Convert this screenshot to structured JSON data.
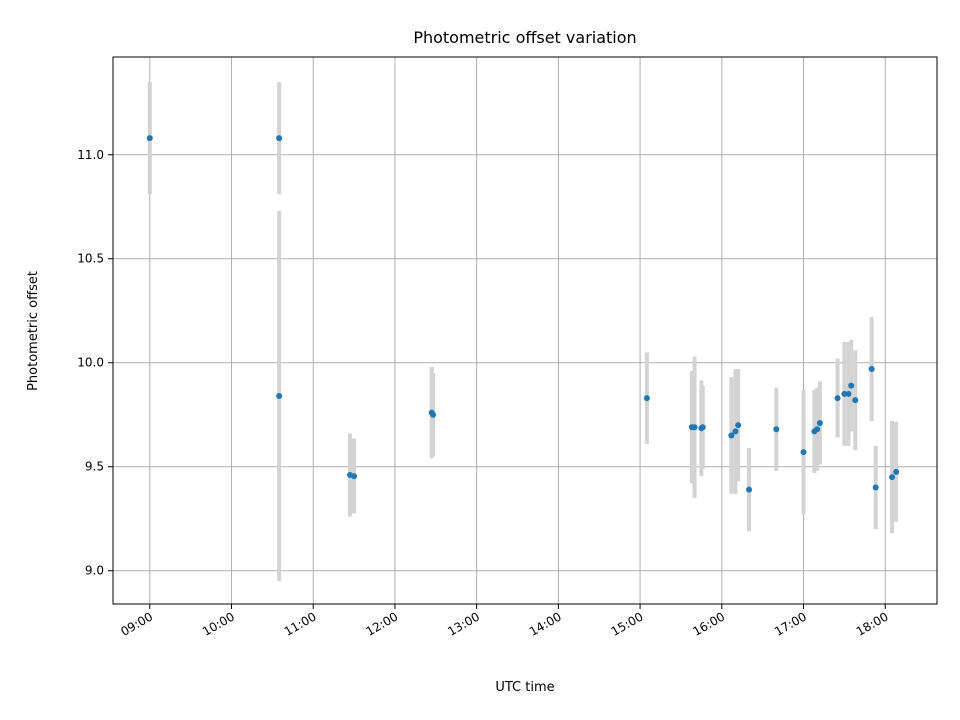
{
  "chart_data": {
    "type": "scatter",
    "title": "Photometric offset variation",
    "xlabel": "UTC time",
    "ylabel": "Photometric offset",
    "xlim": [
      "08:33",
      "18:38"
    ],
    "ylim": [
      8.84,
      11.47
    ],
    "xticks": [
      "09:00",
      "10:00",
      "11:00",
      "12:00",
      "13:00",
      "14:00",
      "15:00",
      "16:00",
      "17:00",
      "18:00"
    ],
    "yticks": [
      "9.0",
      "9.5",
      "10.0",
      "10.5",
      "11.0"
    ],
    "grid": true,
    "legend": "none",
    "colors": {
      "point": "#1f77b4",
      "errorbar": "#d3d3d3",
      "grid": "#b0b0b0"
    },
    "points": [
      {
        "t": "09:00",
        "y": 11.08,
        "yerr": 0.27
      },
      {
        "t": "10:35",
        "y": 11.08,
        "yerr": 0.27
      },
      {
        "t": "10:35",
        "y": 9.84,
        "yerr": 0.89
      },
      {
        "t": "11:27",
        "y": 9.46,
        "yerr": 0.2
      },
      {
        "t": "11:30",
        "y": 9.455,
        "yerr": 0.18
      },
      {
        "t": "12:27",
        "y": 9.76,
        "yerr": 0.22
      },
      {
        "t": "12:28",
        "y": 9.75,
        "yerr": 0.2
      },
      {
        "t": "15:05",
        "y": 9.83,
        "yerr": 0.22
      },
      {
        "t": "15:38",
        "y": 9.69,
        "yerr": 0.27
      },
      {
        "t": "15:40",
        "y": 9.69,
        "yerr": 0.34
      },
      {
        "t": "15:45",
        "y": 9.685,
        "yerr": 0.23
      },
      {
        "t": "15:46",
        "y": 9.69,
        "yerr": 0.2
      },
      {
        "t": "16:07",
        "y": 9.65,
        "yerr": 0.28
      },
      {
        "t": "16:10",
        "y": 9.67,
        "yerr": 0.3
      },
      {
        "t": "16:12",
        "y": 9.7,
        "yerr": 0.27
      },
      {
        "t": "16:20",
        "y": 9.39,
        "yerr": 0.2
      },
      {
        "t": "16:40",
        "y": 9.68,
        "yerr": 0.2
      },
      {
        "t": "17:00",
        "y": 9.57,
        "yerr": 0.3
      },
      {
        "t": "17:08",
        "y": 9.67,
        "yerr": 0.2
      },
      {
        "t": "17:10",
        "y": 9.68,
        "yerr": 0.2
      },
      {
        "t": "17:12",
        "y": 9.71,
        "yerr": 0.2
      },
      {
        "t": "17:25",
        "y": 9.83,
        "yerr": 0.19
      },
      {
        "t": "17:30",
        "y": 9.85,
        "yerr": 0.25
      },
      {
        "t": "17:33",
        "y": 9.85,
        "yerr": 0.25
      },
      {
        "t": "17:35",
        "y": 9.89,
        "yerr": 0.22
      },
      {
        "t": "17:38",
        "y": 9.82,
        "yerr": 0.24
      },
      {
        "t": "17:50",
        "y": 9.97,
        "yerr": 0.25
      },
      {
        "t": "17:53",
        "y": 9.4,
        "yerr": 0.2
      },
      {
        "t": "18:05",
        "y": 9.45,
        "yerr": 0.27
      },
      {
        "t": "18:08",
        "y": 9.475,
        "yerr": 0.24
      }
    ]
  }
}
